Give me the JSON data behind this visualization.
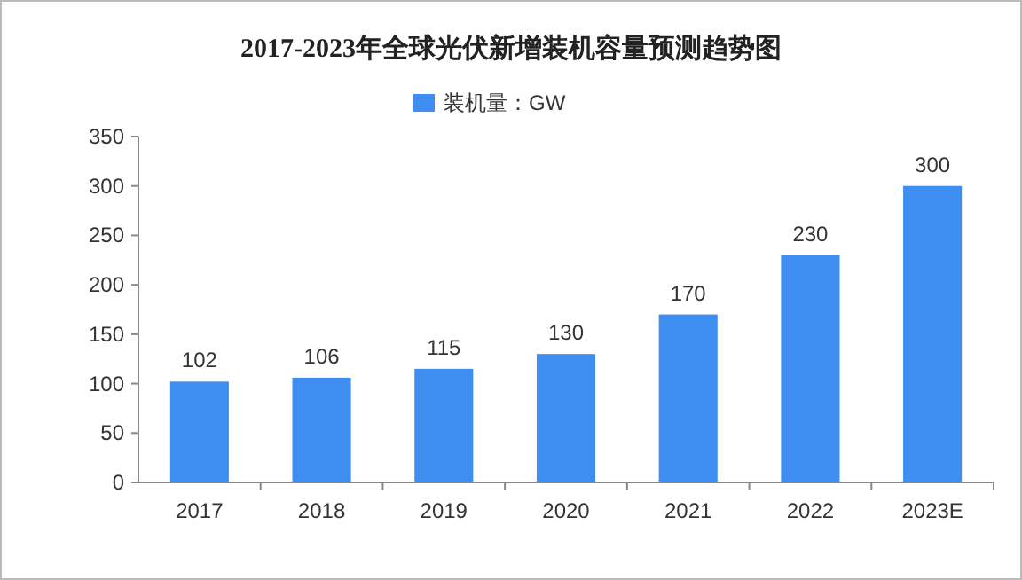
{
  "chart_data": {
    "type": "bar",
    "title": "2017-2023年全球光伏新增装机容量预测趋势图",
    "categories": [
      "2017",
      "2018",
      "2019",
      "2020",
      "2021",
      "2022",
      "2023E"
    ],
    "series": [
      {
        "name": "装机量：GW",
        "color": "#3d8ef0",
        "values": [
          102,
          106,
          115,
          130,
          170,
          230,
          300
        ]
      }
    ],
    "ylim": [
      0,
      350
    ],
    "yticks": [
      0,
      50,
      100,
      150,
      200,
      250,
      300,
      350
    ],
    "data_labels": true,
    "legend": "top"
  }
}
